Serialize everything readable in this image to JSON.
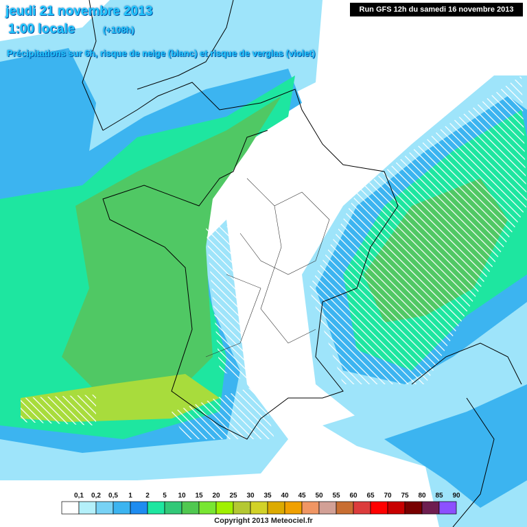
{
  "header": {
    "date": "jeudi 21 novembre 2013",
    "time": "1:00 locale",
    "lead": "(+108h)",
    "subtitle": "Précipitations sur 6h, risque de neige (blanc) et risque de verglas (violet)",
    "run": "Run GFS 12h du samedi 16 novembre 2013"
  },
  "legend": {
    "labels": [
      "0,1",
      "0,2",
      "0,5",
      "1",
      "2",
      "5",
      "10",
      "15",
      "20",
      "25",
      "30",
      "35",
      "40",
      "45",
      "50",
      "55",
      "60",
      "65",
      "70",
      "75",
      "80",
      "85",
      "90"
    ],
    "colors": [
      "#ffffff",
      "#b4f0fa",
      "#78d2f5",
      "#3cb4f0",
      "#1e8cf0",
      "#1ee6a0",
      "#32c878",
      "#50c850",
      "#78e632",
      "#a0f000",
      "#b4c832",
      "#d2d228",
      "#dcaa00",
      "#f0a000",
      "#f09664",
      "#d2a096",
      "#c86e32",
      "#dc3c3c",
      "#ff0000",
      "#c80000",
      "#780000",
      "#6e1e50",
      "#8c50ff",
      "#ff6ef0"
    ]
  },
  "footer": {
    "copyright": "Copyright 2013 Meteociel.fr"
  }
}
